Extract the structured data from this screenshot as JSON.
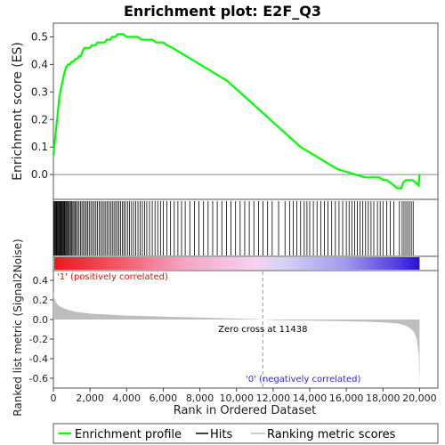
{
  "chart_data": {
    "type": "line",
    "title": "Enrichment plot: E2F_Q3",
    "es_panel": {
      "ylabel": "Enrichment score (ES)",
      "ylim": [
        -0.09,
        0.55
      ],
      "yticks": [
        0.0,
        0.1,
        0.2,
        0.3,
        0.4,
        0.5
      ],
      "ytick_labels": [
        "0.0",
        "0.1",
        "0.2",
        "0.3",
        "0.4",
        "0.5"
      ],
      "line_color": "#00ff00",
      "series": [
        {
          "x": [
            0,
            80,
            150,
            220,
            300,
            400,
            500,
            600,
            700,
            800,
            900,
            1000,
            1100,
            1200,
            1300,
            1400,
            1500,
            1600,
            1700,
            1800,
            1900,
            2000,
            2100,
            2200,
            2300,
            2400,
            2500,
            2600,
            2700,
            2800,
            2900,
            3000,
            3100,
            3200,
            3300,
            3400,
            3500,
            3600,
            3800,
            4000,
            4200,
            4400,
            4600,
            4800,
            5000,
            5200,
            5400,
            5600,
            5800,
            6000,
            6200,
            6500,
            7000,
            7500,
            8000,
            8500,
            9000,
            9500,
            10000,
            10500,
            11000,
            11500,
            12000,
            12500,
            13000,
            13500,
            14000,
            14500,
            15000,
            15500,
            16000,
            16500,
            17000,
            17300,
            17600,
            17800,
            18000,
            18200,
            18400,
            18600,
            18800,
            19000,
            19100,
            19250,
            19400,
            19600,
            19800,
            19950,
            20000
          ],
          "y": [
            0.07,
            0.12,
            0.17,
            0.21,
            0.27,
            0.31,
            0.34,
            0.37,
            0.39,
            0.4,
            0.4,
            0.41,
            0.41,
            0.42,
            0.42,
            0.43,
            0.43,
            0.45,
            0.46,
            0.46,
            0.46,
            0.46,
            0.47,
            0.47,
            0.47,
            0.48,
            0.48,
            0.48,
            0.48,
            0.48,
            0.49,
            0.49,
            0.49,
            0.5,
            0.5,
            0.5,
            0.51,
            0.51,
            0.51,
            0.5,
            0.5,
            0.5,
            0.5,
            0.49,
            0.49,
            0.49,
            0.49,
            0.48,
            0.48,
            0.48,
            0.47,
            0.46,
            0.44,
            0.42,
            0.4,
            0.38,
            0.36,
            0.34,
            0.31,
            0.28,
            0.25,
            0.22,
            0.19,
            0.16,
            0.13,
            0.1,
            0.08,
            0.06,
            0.04,
            0.02,
            0.01,
            0.0,
            -0.01,
            -0.01,
            -0.01,
            -0.01,
            -0.02,
            -0.02,
            -0.03,
            -0.04,
            -0.05,
            -0.05,
            -0.03,
            -0.02,
            -0.02,
            -0.02,
            -0.03,
            -0.04,
            0.0
          ]
        }
      ]
    },
    "hits_panel": {
      "hit_ranks": [
        30,
        70,
        110,
        150,
        190,
        230,
        270,
        310,
        350,
        390,
        430,
        470,
        510,
        550,
        590,
        630,
        680,
        730,
        780,
        830,
        880,
        940,
        1000,
        1060,
        1120,
        1180,
        1250,
        1320,
        1400,
        1480,
        1560,
        1640,
        1720,
        1800,
        1880,
        1960,
        2050,
        2140,
        2230,
        2320,
        2410,
        2500,
        2590,
        2680,
        2770,
        2860,
        2950,
        3040,
        3130,
        3220,
        3310,
        3400,
        3490,
        3580,
        3670,
        3760,
        3850,
        3940,
        4050,
        4160,
        4270,
        4380,
        4500,
        4620,
        4740,
        4860,
        4980,
        5100,
        5250,
        5400,
        5550,
        5700,
        5850,
        6000,
        6200,
        6400,
        6600,
        6800,
        7000,
        7200,
        7450,
        7700,
        7950,
        8200,
        8450,
        8700,
        8950,
        9200,
        9450,
        9700,
        9950,
        10200,
        10450,
        10700,
        10950,
        11200,
        11450,
        11700,
        11950,
        12300,
        12650,
        12900,
        13100,
        13300,
        13500,
        13700,
        13850,
        14000,
        14200,
        14400,
        14600,
        14800,
        15000,
        15200,
        15400,
        15600,
        15800,
        16000,
        16150,
        16300,
        16450,
        16600,
        16750,
        16900,
        17050,
        17200,
        17350,
        17500,
        17700,
        17850,
        18000,
        18200,
        18400,
        18600,
        18900,
        19050,
        19150,
        19250,
        19350,
        19450,
        19550,
        19650
      ]
    },
    "metric_panel": {
      "ylabel": "Ranked list metric (Signal2Noise)",
      "xlabel": "Rank in Ordered Dataset",
      "ylim": [
        -0.7,
        0.5
      ],
      "yticks": [
        -0.6,
        -0.4,
        -0.2,
        0.0,
        0.2,
        0.4
      ],
      "ytick_labels": [
        "-0.6",
        "-0.4",
        "-0.2",
        "0.0",
        "0.2",
        "0.4"
      ],
      "xlim": [
        0,
        21000
      ],
      "xticks": [
        0,
        2000,
        4000,
        6000,
        8000,
        10000,
        12000,
        14000,
        16000,
        18000,
        20000
      ],
      "xtick_labels": [
        "0",
        "2,000",
        "4,000",
        "6,000",
        "8,000",
        "10,000",
        "12,000",
        "14,000",
        "16,000",
        "18,000",
        "20,000"
      ],
      "metric_x": [
        0,
        50,
        150,
        300,
        500,
        800,
        1200,
        2000,
        3000,
        4000,
        5000,
        6000,
        7000,
        8000,
        9000,
        10000,
        11000,
        11438,
        12000,
        13000,
        14000,
        15000,
        16000,
        17000,
        18000,
        18800,
        19200,
        19500,
        19700,
        19850,
        19950,
        20000
      ],
      "metric_y": [
        0.3,
        0.22,
        0.17,
        0.14,
        0.12,
        0.1,
        0.08,
        0.06,
        0.05,
        0.04,
        0.035,
        0.03,
        0.025,
        0.02,
        0.015,
        0.01,
        0.005,
        0.0,
        -0.005,
        -0.01,
        -0.012,
        -0.015,
        -0.018,
        -0.022,
        -0.03,
        -0.04,
        -0.06,
        -0.09,
        -0.13,
        -0.2,
        -0.35,
        -0.65
      ],
      "zero_cross": 11438,
      "annotations": {
        "positive": "'1' (positively correlated)",
        "negative": "'0' (negatively correlated)",
        "zero_cross": "Zero cross at 11438"
      }
    },
    "legend": {
      "placement": "bottom",
      "items": [
        {
          "label": "Enrichment profile",
          "color": "#00ff00"
        },
        {
          "label": "Hits",
          "color": "#000000"
        },
        {
          "label": "Ranking metric scores",
          "color": "#bebebe"
        }
      ]
    }
  }
}
